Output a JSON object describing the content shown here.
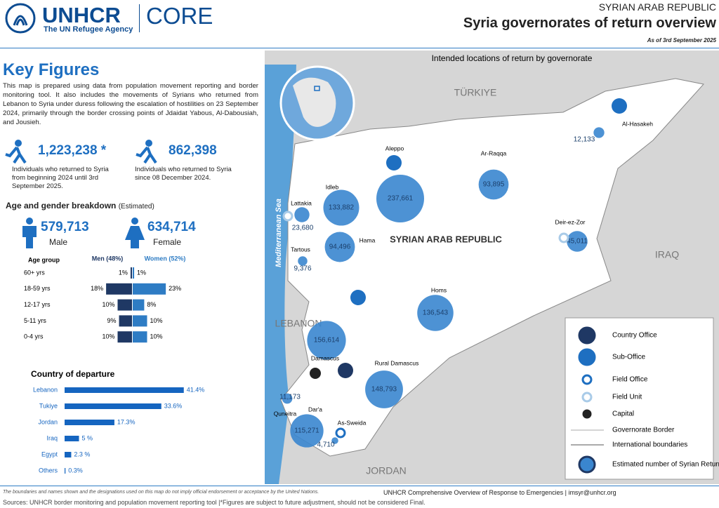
{
  "header": {
    "logo": "UNHCR",
    "tagline": "The UN Refugee Agency",
    "product": "CORE",
    "country": "SYRIAN ARAB REPUBLIC",
    "title": "Syria governorates of return overview",
    "date": "As of 3rd September 2025"
  },
  "key_figures": {
    "title": "Key Figures",
    "description": "This map is prepared using data from population movement reporting and border monitoring tool. It also includes the movements of Syrians who returned from Lebanon to Syria under duress following the escalation of hostilities on 23 September 2024, primarily through the border crossing points of Jdaidat Yabous, Al-Dabousiah, and Jousieh.",
    "figures": [
      {
        "value": "1,223,238 *",
        "text": "Individuals who returned to Syria from beginning 2024 until 3rd September 2025."
      },
      {
        "value": "862,398",
        "text": "Individuals who returned to Syria since 08 December 2024."
      }
    ]
  },
  "gender": {
    "title": "Age and gender breakdown",
    "subtitle": "(Estimated)",
    "male": {
      "value": "579,713",
      "label": "Male"
    },
    "female": {
      "value": "634,714",
      "label": "Female"
    }
  },
  "age_chart": {
    "type": "bar",
    "orientation": "horizontal",
    "layout": "butterfly",
    "category_header": "Age group",
    "categories": [
      "60+ yrs",
      "18-59 yrs",
      "12-17 yrs",
      "5-11 yrs",
      "0-4 yrs"
    ],
    "series": [
      {
        "name": "Men (48%)",
        "color": "#1f3864",
        "values": [
          1,
          18,
          10,
          9,
          10
        ],
        "value_labels": [
          "1%",
          "18%",
          "10%",
          "9%",
          "10%"
        ]
      },
      {
        "name": "Women (52%)",
        "color": "#2e7cc4",
        "values": [
          1,
          23,
          8,
          10,
          10
        ],
        "value_labels": [
          "1%",
          "23%",
          "8%",
          "10%",
          "10%"
        ]
      }
    ]
  },
  "departure_chart": {
    "type": "bar",
    "orientation": "horizontal",
    "title": "Country of departure",
    "categories": [
      "Lebanon",
      "Tukiye",
      "Jordan",
      "Iraq",
      "Egypt",
      "Others"
    ],
    "color": "#1565c0",
    "values": [
      41.4,
      33.6,
      17.3,
      5,
      2.3,
      0.3
    ],
    "value_labels": [
      "41.4%",
      "33.6%",
      "17.3%",
      "5 %",
      "2.3 %",
      "0.3%"
    ]
  },
  "map": {
    "title": "Intended locations of return by governorate",
    "countries": [
      "TÜRKIYE",
      "IRAQ",
      "LEBANON",
      "JORDAN",
      "SYRIAN ARAB REPUBLIC"
    ],
    "sea": "Mediterranean Sea",
    "governorates": [
      {
        "name": "Aleppo",
        "value": 237661,
        "value_label": "237,661"
      },
      {
        "name": "Ar-Raqqa",
        "value": 93895,
        "value_label": "93,895"
      },
      {
        "name": "Al-Hasakeh",
        "value": 12133,
        "value_label": "12,133"
      },
      {
        "name": "Idleb",
        "value": 133882,
        "value_label": "133,882"
      },
      {
        "name": "Lattakia",
        "value": 23680,
        "value_label": "23,680"
      },
      {
        "name": "Hama",
        "value": 94496,
        "value_label": "94,496"
      },
      {
        "name": "Tartous",
        "value": 9376,
        "value_label": "9,376"
      },
      {
        "name": "Deir-ez-Zor",
        "value": 45011,
        "value_label": "45,011"
      },
      {
        "name": "Homs",
        "value": 136543,
        "value_label": "136,543"
      },
      {
        "name": "Damascus",
        "value": 156614,
        "value_label": "156,614"
      },
      {
        "name": "Rural Damascus",
        "value": 148793,
        "value_label": "148,793"
      },
      {
        "name": "Quneitra",
        "value": 11173,
        "value_label": "11,173"
      },
      {
        "name": "Dar'a",
        "value": 115271,
        "value_label": "115,271"
      },
      {
        "name": "As-Sweida",
        "value": 4710,
        "value_label": "4,710"
      }
    ],
    "legend": [
      "Country Office",
      "Sub-Office",
      "Field Office",
      "Field Unit",
      "Capital",
      "Governorate Border",
      "International boundaries",
      "Estimated number of Syrian Returnees"
    ]
  },
  "footer": {
    "disclaimer": "The boundaries and names shown and the designations used on this map do not imply official endorsement or acceptance by the United Nations.",
    "credit": "UNHCR Comprehensive Overview of Response to Emergencies | imsyr@unhcr.org",
    "sources": "Sources: UNHCR border monitoring and population movement reporting tool |*Figures are subject to future adjustment, should not be considered Final."
  }
}
